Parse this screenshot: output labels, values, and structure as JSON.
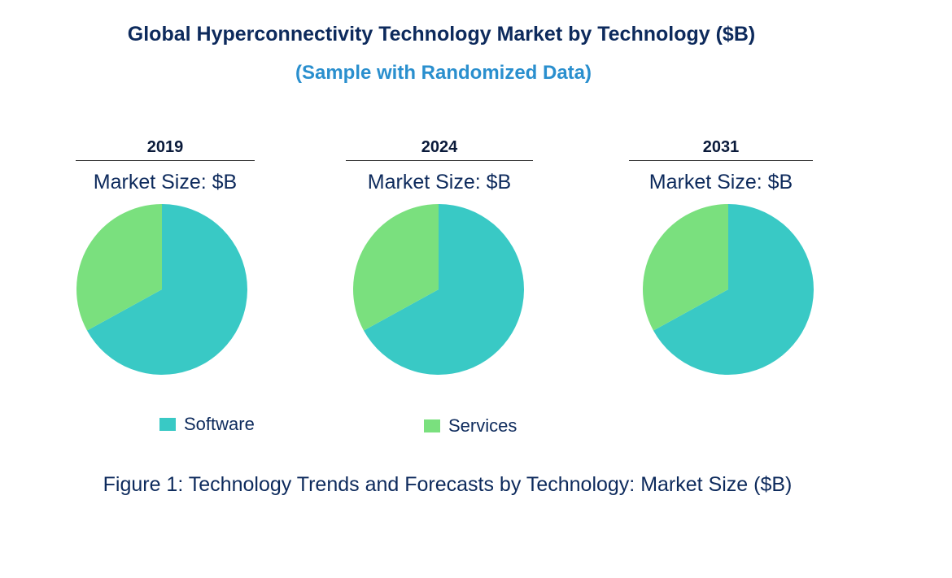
{
  "title": "Global Hyperconnectivity Technology Market by Technology ($B)",
  "subtitle": "(Sample with Randomized Data)",
  "caption": "Figure 1: Technology Trends and Forecasts by Technology: Market Size ($B)",
  "chart_data": [
    {
      "type": "pie",
      "title": "2019",
      "subtitle": "Market Size: $B",
      "categories": [
        "Software",
        "Services"
      ],
      "values": [
        67,
        33
      ],
      "colors": [
        "#39c9c5",
        "#7ae07e"
      ]
    },
    {
      "type": "pie",
      "title": "2024",
      "subtitle": "Market Size: $B",
      "categories": [
        "Software",
        "Services"
      ],
      "values": [
        67,
        33
      ],
      "colors": [
        "#39c9c5",
        "#7ae07e"
      ]
    },
    {
      "type": "pie",
      "title": "2031",
      "subtitle": "Market Size: $B",
      "categories": [
        "Software",
        "Services"
      ],
      "values": [
        67,
        33
      ],
      "colors": [
        "#39c9c5",
        "#7ae07e"
      ]
    }
  ],
  "legend": [
    {
      "label": "Software",
      "color": "#39c9c5"
    },
    {
      "label": "Services",
      "color": "#7ae07e"
    }
  ]
}
